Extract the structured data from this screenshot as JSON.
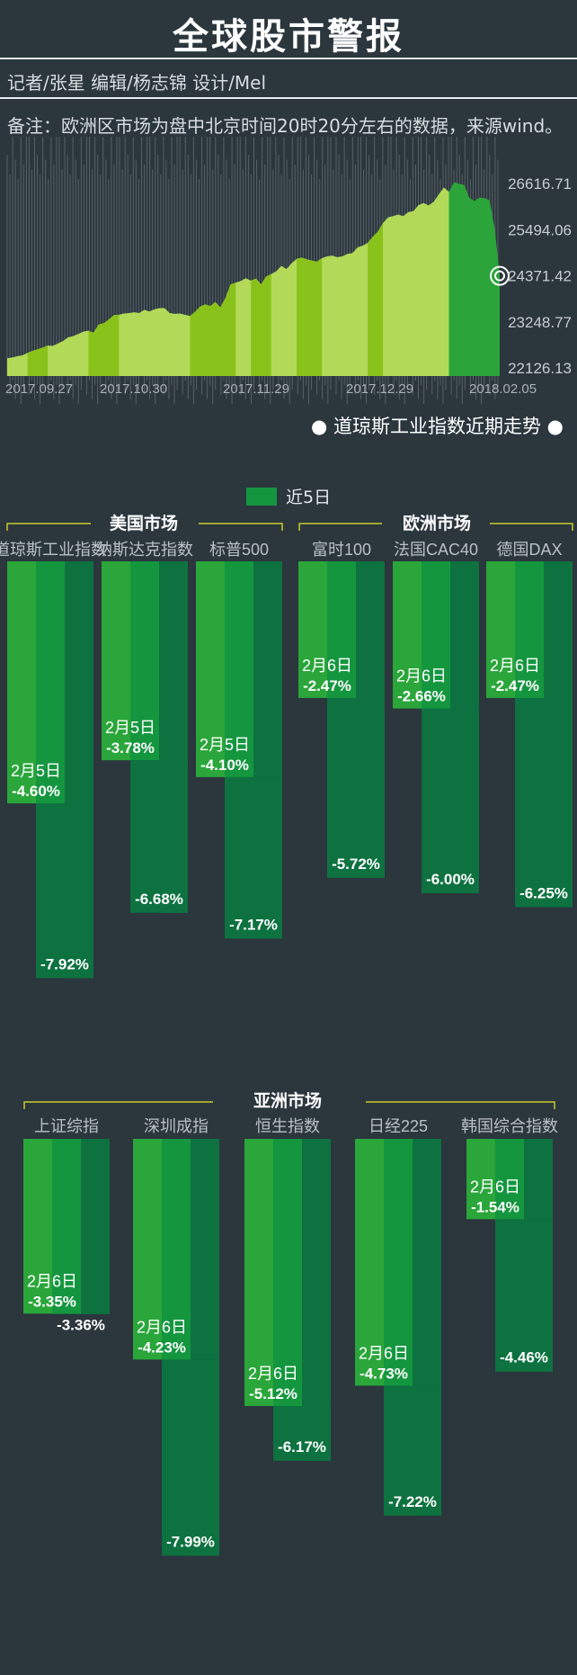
{
  "header": {
    "title": "全球股市警报",
    "credits": "记者/张星  编辑/杨志锦  设计/Mel",
    "note": "备注：欧洲区市场为盘中北京时间20时20分左右的数据，来源wind。"
  },
  "legend": {
    "label": "近5日"
  },
  "colors": {
    "background": "#2b363d",
    "area_light": "#b2da58",
    "area_dark": "#8ac21c",
    "area_recent": "#2ba43a",
    "bar_left": "#2aa63a",
    "bar_mid": "#14963f",
    "bar_right": "#0d7240",
    "bracket": "#c9cc2c"
  },
  "chart_data": [
    {
      "type": "area",
      "title": "道琼斯工业指数近期走势",
      "x_ticks": [
        "2017.09.27",
        "2017.10.30",
        "2017.11.29",
        "2017.12.29",
        "2018.02.05"
      ],
      "y_ticks": [
        "26616.71",
        "25494.06",
        "24371.42",
        "23248.77",
        "22126.13"
      ],
      "ylim": [
        22126.13,
        26616.71
      ],
      "series": [
        {
          "values": [
            22340,
            22360,
            22390,
            22410,
            22470,
            22520,
            22560,
            22600,
            22650,
            22640,
            22700,
            22760,
            22850,
            22880,
            22930,
            22990,
            23010,
            22960,
            23160,
            23190,
            23280,
            23390,
            23400,
            23430,
            23440,
            23460,
            23440,
            23520,
            23480,
            23530,
            23560,
            23560,
            23440,
            23420,
            23430,
            23400,
            23370,
            23470,
            23600,
            23650,
            23610,
            23710,
            23580,
            23810,
            24140,
            24180,
            24220,
            24290,
            24230,
            24280,
            24140,
            24330,
            24390,
            24460,
            24590,
            24510,
            24650,
            24760,
            24790,
            24750,
            24720,
            24690,
            24780,
            24820,
            24840,
            24800,
            24820,
            24880,
            24900,
            25040,
            25080,
            25150,
            25300,
            25420,
            25630,
            25770,
            25800,
            25840,
            25800,
            25900,
            25920,
            26070,
            26120,
            26060,
            26150,
            26330,
            26500,
            26390,
            26630,
            26590,
            26560,
            26250,
            26170,
            26250,
            26240,
            26190,
            25520,
            24346
          ]
        }
      ],
      "marker_value": 24345.75
    },
    {
      "type": "bar",
      "group": "美国市场",
      "categories": [
        "道琼斯工业指数",
        "纳斯达克指数",
        "标普500"
      ],
      "series": [
        {
          "name": "2月5日",
          "values": [
            -4.6,
            -3.78,
            -4.1
          ]
        },
        {
          "name": "近5日",
          "values": [
            -7.92,
            -6.68,
            -7.17
          ]
        }
      ],
      "labels": [
        "2月5日",
        "2月5日",
        "2月5日"
      ],
      "day_text": [
        "-4.60%",
        "-3.78%",
        "-4.10%"
      ],
      "week_text": [
        "-7.92%",
        "-6.68%",
        "-7.17%"
      ]
    },
    {
      "type": "bar",
      "group": "欧洲市场",
      "categories": [
        "富时100",
        "法国CAC40",
        "德国DAX"
      ],
      "series": [
        {
          "name": "2月6日",
          "values": [
            -2.47,
            -2.66,
            -2.47
          ]
        },
        {
          "name": "近5日",
          "values": [
            -5.72,
            -6.0,
            -6.25
          ]
        }
      ],
      "labels": [
        "2月6日",
        "2月6日",
        "2月6日"
      ],
      "day_text": [
        "-2.47%",
        "-2.66%",
        "-2.47%"
      ],
      "week_text": [
        "-5.72%",
        "-6.00%",
        "-6.25%"
      ]
    },
    {
      "type": "bar",
      "group": "亚洲市场",
      "categories": [
        "上证综指",
        "深圳成指",
        "恒生指数",
        "日经225",
        "韩国综合指数"
      ],
      "series": [
        {
          "name": "2月6日",
          "values": [
            -3.35,
            -4.23,
            -5.12,
            -4.73,
            -1.54
          ]
        },
        {
          "name": "近5日",
          "values": [
            -3.36,
            -7.99,
            -6.17,
            -7.22,
            -4.46
          ]
        }
      ],
      "labels": [
        "2月6日",
        "2月6日",
        "2月6日",
        "2月6日",
        "2月6日"
      ],
      "day_text": [
        "-3.35%",
        "-4.23%",
        "-5.12%",
        "-4.73%",
        "-1.54%"
      ],
      "week_text": [
        "-3.36%",
        "-7.99%",
        "-6.17%",
        "-7.22%",
        "-4.46%"
      ]
    }
  ]
}
